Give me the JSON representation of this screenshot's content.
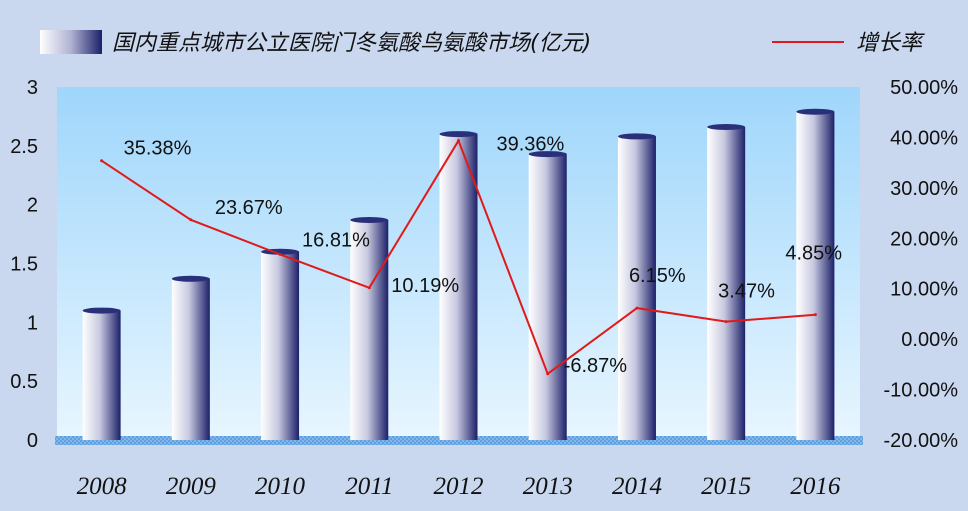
{
  "legend": {
    "bar_label": "国内重点城市公立医院门冬氨酸鸟氨酸市场(亿元)",
    "line_label": "增长率"
  },
  "colors": {
    "background": "#c9d7ef",
    "plot_top": "#9fd6fb",
    "plot_bottom": "#e4f4ff",
    "bar_light": "#ffffff",
    "bar_dark": "#1c2068",
    "line": "#e01a1a",
    "floor": "#5a9ee0"
  },
  "chart_data": {
    "type": "bar+line",
    "categories": [
      "2008",
      "2009",
      "2010",
      "2011",
      "2012",
      "2013",
      "2014",
      "2015",
      "2016"
    ],
    "series": [
      {
        "name": "国内重点城市公立医院门冬氨酸鸟氨酸市场(亿元)",
        "type": "bar",
        "axis": "left",
        "values": [
          1.1,
          1.37,
          1.6,
          1.87,
          2.6,
          2.43,
          2.58,
          2.66,
          2.79
        ]
      },
      {
        "name": "增长率",
        "type": "line",
        "axis": "right",
        "values": [
          35.38,
          23.67,
          16.81,
          10.19,
          39.36,
          -6.87,
          6.15,
          3.47,
          4.85
        ],
        "labels": [
          "35.38%",
          "23.67%",
          "16.81%",
          "10.19%",
          "39.36%",
          "-6.87%",
          "6.15%",
          "3.47%",
          "4.85%"
        ]
      }
    ],
    "y_left": {
      "min": 0,
      "max": 3,
      "ticks": [
        "0",
        "0.5",
        "1",
        "1.5",
        "2",
        "2.5",
        "3"
      ]
    },
    "y_right": {
      "min": -20,
      "max": 50,
      "ticks": [
        "-20.00%",
        "-10.00%",
        "0.00%",
        "10.00%",
        "20.00%",
        "30.00%",
        "40.00%",
        "50.00%"
      ]
    },
    "grid": false,
    "legend_position": "top"
  }
}
